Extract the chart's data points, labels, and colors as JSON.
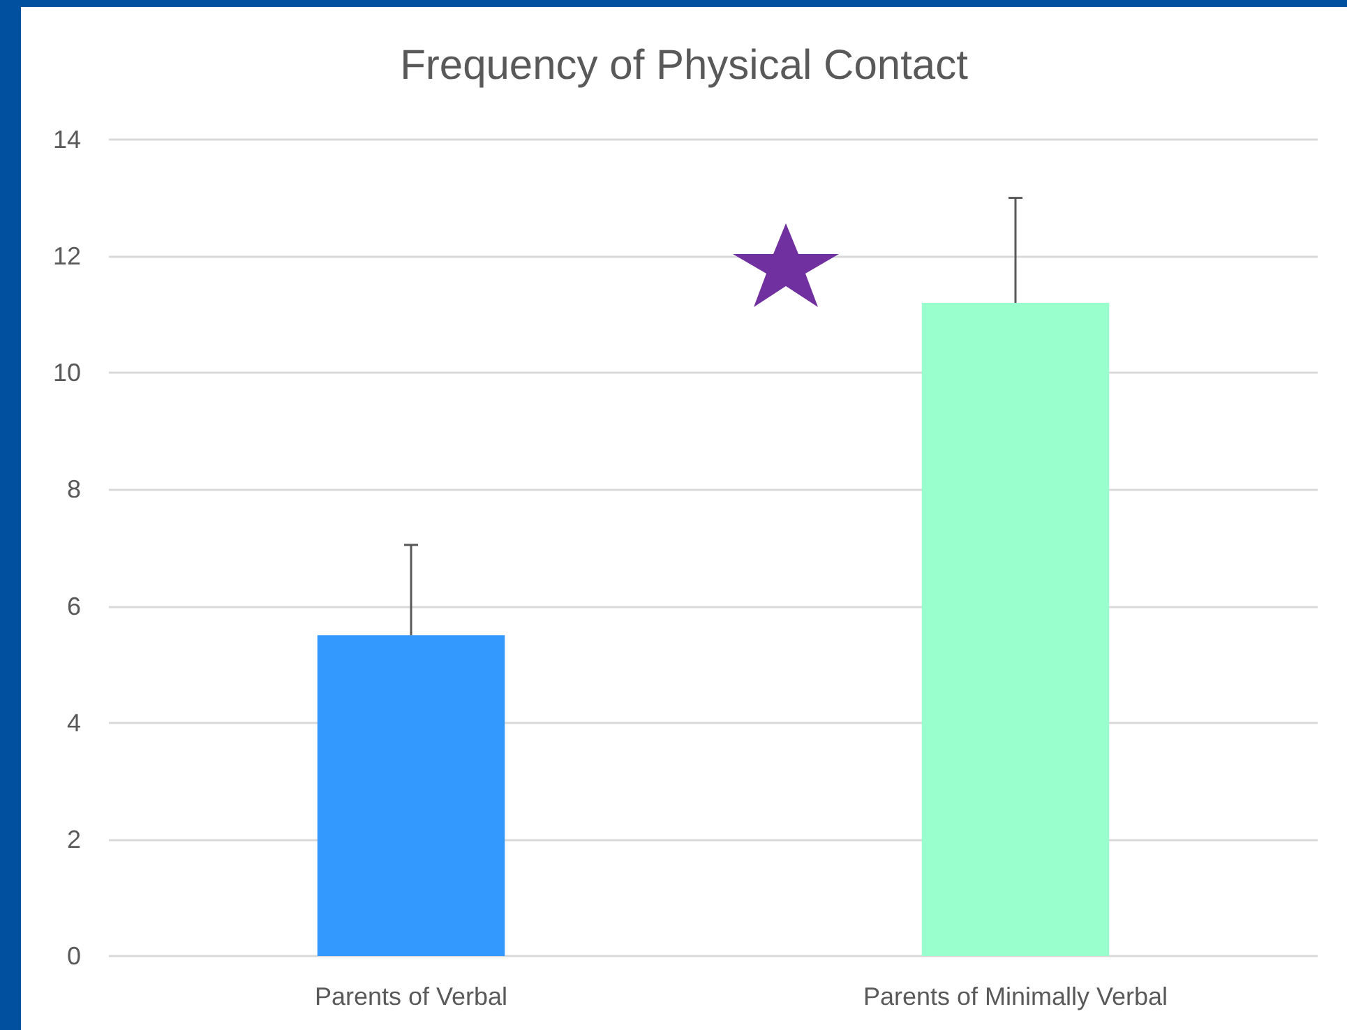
{
  "chart_data": {
    "type": "bar",
    "title": "Frequency of Physical Contact",
    "categories": [
      "Parents of Verbal",
      "Parents of Minimally Verbal"
    ],
    "values": [
      5.5,
      11.2
    ],
    "colors": [
      "#3399ff",
      "#99ffcc"
    ],
    "errors": [
      [
        5.5,
        7.05
      ],
      [
        11.2,
        13.0
      ]
    ],
    "ylim": [
      0,
      14
    ],
    "yticks": [
      0,
      2,
      4,
      6,
      8,
      10,
      12,
      14
    ],
    "grid": "y"
  }
}
